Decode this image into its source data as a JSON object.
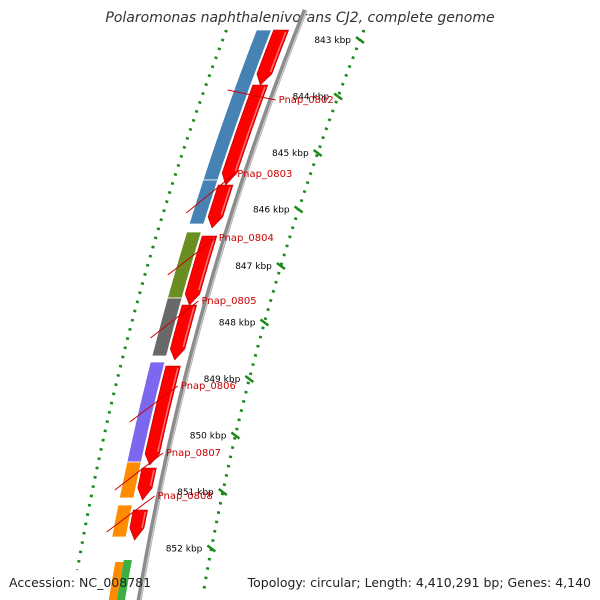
{
  "title": "Polaromonas naphthalenivorans CJ2, complete genome",
  "footer": {
    "accession": "Accession: NC_008781",
    "summary": "Topology: circular; Length: 4,410,291 bp; Genes: 4,140"
  },
  "colors": {
    "backbone": "#8c8c8c",
    "scale_dots": "#1a8a1a",
    "cds": "#ff0000",
    "label": "#cc0000"
  },
  "scale": {
    "unit": "kbp",
    "ticks": [
      843,
      844,
      845,
      846,
      847,
      848,
      849,
      850,
      851,
      852
    ]
  },
  "genes": [
    {
      "label": "Pnap_0802",
      "color": "#4682b4"
    },
    {
      "label": "Pnap_0803",
      "color": "#4682b4"
    },
    {
      "label": "Pnap_0804",
      "color": "#6b8e23"
    },
    {
      "label": "Pnap_0805",
      "color": "#696969"
    },
    {
      "label": "Pnap_0806",
      "color": "#7b68ee"
    },
    {
      "label": "Pnap_0807",
      "color": "#ff8c00"
    },
    {
      "label": "Pnap_0808",
      "color": "#ff8c00"
    }
  ]
}
